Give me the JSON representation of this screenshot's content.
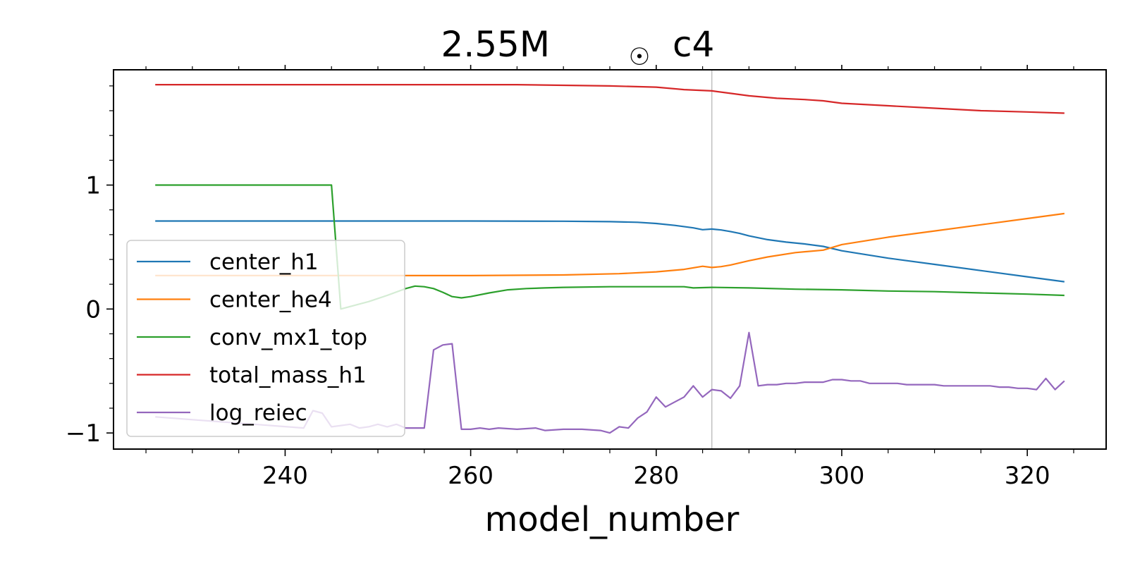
{
  "chart_data": {
    "type": "line",
    "title_main": "2.55M",
    "title_symbol": "☉",
    "title_suffix": "c4",
    "xlabel": "model_number",
    "ylabel": "",
    "xlim": [
      221.5,
      328.5
    ],
    "ylim": [
      -1.13,
      1.93
    ],
    "xticks": [
      240,
      260,
      280,
      300,
      320
    ],
    "xtick_labels": [
      "240",
      "260",
      "280",
      "300",
      "320"
    ],
    "yticks": [
      -1,
      0,
      1
    ],
    "ytick_labels": [
      "−1",
      "0",
      "1"
    ],
    "vline_x": 286,
    "legend_position": "lower-left",
    "grid": false,
    "series": [
      {
        "name": "center_h1",
        "color": "#1f77b4",
        "x": [
          226,
          240,
          260,
          270,
          275,
          278,
          280,
          282,
          284,
          285,
          286,
          287,
          288,
          289,
          290,
          292,
          294,
          296,
          298,
          300,
          305,
          310,
          315,
          320,
          324
        ],
        "y": [
          0.71,
          0.71,
          0.71,
          0.708,
          0.705,
          0.7,
          0.69,
          0.675,
          0.655,
          0.64,
          0.645,
          0.638,
          0.625,
          0.61,
          0.59,
          0.56,
          0.54,
          0.525,
          0.505,
          0.47,
          0.41,
          0.36,
          0.31,
          0.26,
          0.22
        ]
      },
      {
        "name": "center_he4",
        "color": "#ff7f0e",
        "x": [
          226,
          250,
          260,
          270,
          276,
          280,
          283,
          285,
          286,
          287,
          288,
          290,
          292,
          295,
          298,
          300,
          305,
          310,
          315,
          320,
          324
        ],
        "y": [
          0.27,
          0.27,
          0.27,
          0.275,
          0.285,
          0.3,
          0.32,
          0.345,
          0.335,
          0.342,
          0.355,
          0.39,
          0.42,
          0.455,
          0.475,
          0.52,
          0.58,
          0.63,
          0.68,
          0.73,
          0.77
        ],
        "dashed": false
      },
      {
        "name": "conv_mx1_top",
        "color": "#2ca02c",
        "x": [
          226,
          245,
          246,
          247,
          249,
          251,
          253,
          254,
          255,
          256,
          257,
          258,
          259,
          260,
          262,
          264,
          266,
          268,
          270,
          275,
          280,
          283,
          284,
          286,
          290,
          295,
          300,
          305,
          310,
          315,
          320,
          324
        ],
        "y": [
          1.0,
          1.0,
          0.0,
          0.02,
          0.06,
          0.11,
          0.165,
          0.185,
          0.18,
          0.165,
          0.135,
          0.1,
          0.09,
          0.1,
          0.13,
          0.155,
          0.165,
          0.17,
          0.175,
          0.18,
          0.18,
          0.18,
          0.17,
          0.175,
          0.17,
          0.16,
          0.155,
          0.145,
          0.14,
          0.13,
          0.12,
          0.11
        ]
      },
      {
        "name": "total_mass_h1",
        "color": "#d62728",
        "x": [
          226,
          250,
          265,
          275,
          280,
          283,
          286,
          288,
          290,
          293,
          296,
          298,
          300,
          305,
          310,
          315,
          320,
          324
        ],
        "y": [
          1.81,
          1.81,
          1.81,
          1.8,
          1.79,
          1.77,
          1.76,
          1.74,
          1.72,
          1.7,
          1.69,
          1.68,
          1.66,
          1.64,
          1.62,
          1.6,
          1.59,
          1.58
        ],
        "dashed": false
      },
      {
        "name": "log_reiec",
        "color": "#9467bd",
        "x": [
          226,
          242,
          243,
          244,
          245,
          246,
          247,
          248,
          249,
          250,
          251,
          252,
          253,
          254,
          255,
          256,
          257,
          258,
          259,
          260,
          261,
          262,
          263,
          265,
          267,
          268,
          270,
          272,
          274,
          275,
          276,
          277,
          278,
          279,
          280,
          281,
          282,
          283,
          284,
          285,
          286,
          287,
          288,
          289,
          290,
          291,
          292,
          293,
          294,
          295,
          296,
          297,
          298,
          299,
          300,
          301,
          302,
          303,
          304,
          305,
          306,
          307,
          308,
          309,
          310,
          311,
          312,
          313,
          314,
          315,
          316,
          317,
          318,
          319,
          320,
          321,
          322,
          323,
          324
        ],
        "y": [
          -0.87,
          -0.96,
          -0.82,
          -0.84,
          -0.95,
          -0.94,
          -0.93,
          -0.96,
          -0.95,
          -0.93,
          -0.95,
          -0.93,
          -0.96,
          -0.96,
          -0.96,
          -0.33,
          -0.29,
          -0.28,
          -0.97,
          -0.97,
          -0.96,
          -0.97,
          -0.96,
          -0.97,
          -0.96,
          -0.98,
          -0.97,
          -0.97,
          -0.98,
          -1.0,
          -0.95,
          -0.96,
          -0.88,
          -0.83,
          -0.71,
          -0.79,
          -0.75,
          -0.71,
          -0.62,
          -0.71,
          -0.65,
          -0.66,
          -0.72,
          -0.62,
          -0.19,
          -0.62,
          -0.61,
          -0.61,
          -0.6,
          -0.6,
          -0.59,
          -0.59,
          -0.59,
          -0.57,
          -0.57,
          -0.58,
          -0.58,
          -0.6,
          -0.6,
          -0.6,
          -0.6,
          -0.61,
          -0.61,
          -0.61,
          -0.61,
          -0.62,
          -0.62,
          -0.62,
          -0.62,
          -0.62,
          -0.62,
          -0.63,
          -0.63,
          -0.64,
          -0.64,
          -0.65,
          -0.56,
          -0.65,
          -0.58
        ]
      }
    ]
  }
}
